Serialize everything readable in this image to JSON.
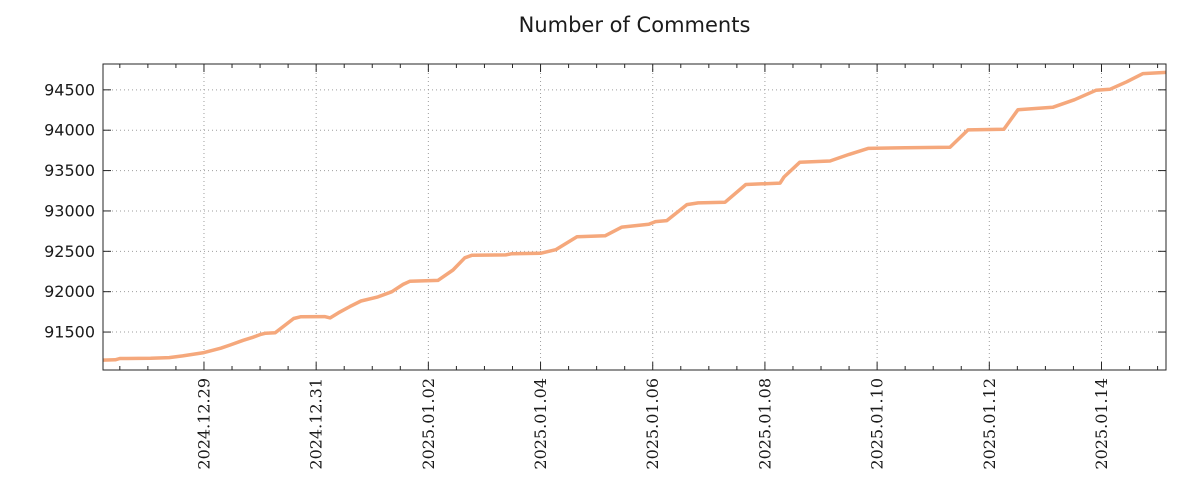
{
  "chart_data": {
    "type": "line",
    "title": "Number of Comments",
    "legend": "none",
    "grid": {
      "show": true,
      "color": "#9e9e9e",
      "dash": "1 3"
    },
    "border_color": "#262626",
    "text_color": "#1a1a1a",
    "x_axis": {
      "unit": "days since 2024-12-27 00:00",
      "lim": [
        0.2,
        19.15
      ],
      "minor_tick_interval": 0.5,
      "major_ticks": [
        {
          "t": 2,
          "label": "2024.12.29"
        },
        {
          "t": 4,
          "label": "2024.12.31"
        },
        {
          "t": 6,
          "label": "2025.01.02"
        },
        {
          "t": 8,
          "label": "2025.01.04"
        },
        {
          "t": 10,
          "label": "2025.01.06"
        },
        {
          "t": 12,
          "label": "2025.01.08"
        },
        {
          "t": 14,
          "label": "2025.01.10"
        },
        {
          "t": 16,
          "label": "2025.01.12"
        },
        {
          "t": 18,
          "label": "2025.01.14"
        }
      ]
    },
    "y_axis": {
      "lim": [
        91030,
        94820
      ],
      "major_ticks": [
        {
          "v": 91500,
          "label": "91500"
        },
        {
          "v": 92000,
          "label": "92000"
        },
        {
          "v": 92500,
          "label": "92500"
        },
        {
          "v": 93000,
          "label": "93000"
        },
        {
          "v": 93500,
          "label": "93500"
        },
        {
          "v": 94000,
          "label": "94000"
        },
        {
          "v": 94500,
          "label": "94500"
        }
      ]
    },
    "series": [
      {
        "name": "comments",
        "color": "#f5a87c",
        "width": 3.5,
        "points": [
          [
            0.2,
            91152
          ],
          [
            0.42,
            91156
          ],
          [
            0.5,
            91172
          ],
          [
            1.05,
            91175
          ],
          [
            1.38,
            91184
          ],
          [
            1.62,
            91205
          ],
          [
            2.0,
            91245
          ],
          [
            2.3,
            91300
          ],
          [
            2.46,
            91338
          ],
          [
            2.7,
            91398
          ],
          [
            2.87,
            91435
          ],
          [
            3.0,
            91468
          ],
          [
            3.1,
            91486
          ],
          [
            3.27,
            91491
          ],
          [
            3.6,
            91668
          ],
          [
            3.72,
            91689
          ],
          [
            4.15,
            91691
          ],
          [
            4.25,
            91675
          ],
          [
            4.4,
            91740
          ],
          [
            4.6,
            91815
          ],
          [
            4.8,
            91885
          ],
          [
            5.1,
            91935
          ],
          [
            5.35,
            92000
          ],
          [
            5.55,
            92090
          ],
          [
            5.67,
            92128
          ],
          [
            6.17,
            92140
          ],
          [
            6.44,
            92268
          ],
          [
            6.65,
            92420
          ],
          [
            6.78,
            92452
          ],
          [
            7.38,
            92456
          ],
          [
            7.49,
            92471
          ],
          [
            8.0,
            92476
          ],
          [
            8.27,
            92520
          ],
          [
            8.65,
            92680
          ],
          [
            9.15,
            92692
          ],
          [
            9.45,
            92800
          ],
          [
            9.7,
            92818
          ],
          [
            9.93,
            92835
          ],
          [
            10.05,
            92868
          ],
          [
            10.25,
            92880
          ],
          [
            10.61,
            93078
          ],
          [
            10.81,
            93100
          ],
          [
            11.29,
            93108
          ],
          [
            11.66,
            93328
          ],
          [
            12.27,
            93345
          ],
          [
            12.34,
            93420
          ],
          [
            12.62,
            93603
          ],
          [
            13.16,
            93618
          ],
          [
            13.5,
            93700
          ],
          [
            13.84,
            93775
          ],
          [
            14.5,
            93782
          ],
          [
            15.3,
            93790
          ],
          [
            15.62,
            94004
          ],
          [
            16.26,
            94012
          ],
          [
            16.51,
            94253
          ],
          [
            17.13,
            94284
          ],
          [
            17.52,
            94378
          ],
          [
            17.9,
            94494
          ],
          [
            18.15,
            94507
          ],
          [
            18.45,
            94600
          ],
          [
            18.74,
            94701
          ],
          [
            19.15,
            94716
          ]
        ]
      }
    ]
  }
}
